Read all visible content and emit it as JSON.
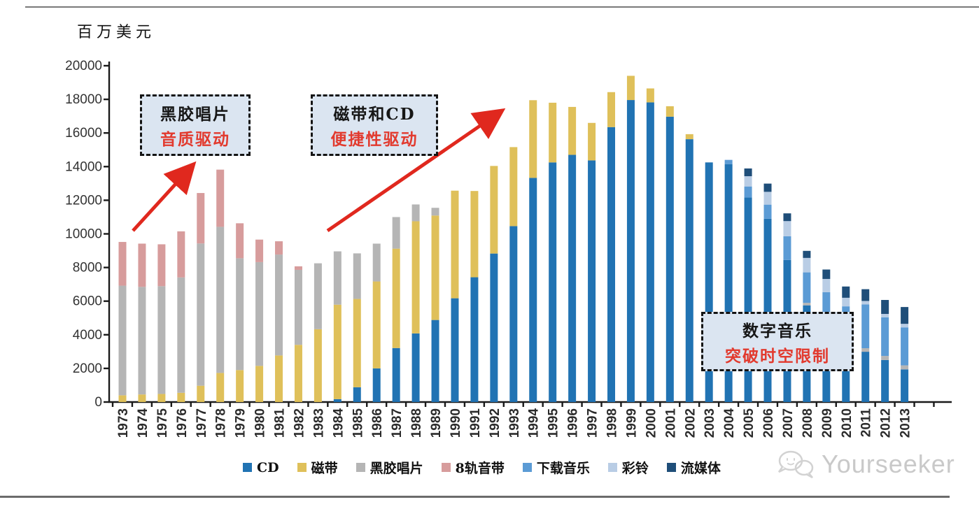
{
  "page": {
    "unit_label": "百万美元",
    "watermark": "Yourseeker"
  },
  "annotations": [
    {
      "line1": "黑胶唱片",
      "line2": "音质驱动"
    },
    {
      "line1": "磁带和CD",
      "line2": "便捷性驱动"
    },
    {
      "line1": "数字音乐",
      "line2": "突破时空限制"
    }
  ],
  "colors": {
    "axis": "#1a1a1a",
    "tick_text": "#333333",
    "arrow_red": "#e0281e",
    "box_bg": "#dbe5f1",
    "box_border": "#141414",
    "annotation_red": "#e23a2e",
    "watermark_gray": "#c9c9c9"
  },
  "chart_data": {
    "type": "bar",
    "stacked": true,
    "title": "",
    "ylabel": "百万美元",
    "xlabel": "",
    "ylim": [
      0,
      20000
    ],
    "ytick_step": 2000,
    "grid": false,
    "legend_position": "bottom",
    "categories": [
      "1973",
      "1974",
      "1975",
      "1976",
      "1977",
      "1978",
      "1979",
      "1980",
      "1981",
      "1982",
      "1983",
      "1984",
      "1985",
      "1986",
      "1987",
      "1988",
      "1989",
      "1990",
      "1991",
      "1992",
      "1993",
      "1994",
      "1995",
      "1996",
      "1997",
      "1998",
      "1999",
      "2000",
      "2001",
      "2002",
      "2003",
      "2004",
      "2005",
      "2006",
      "2007",
      "2008",
      "2009",
      "2010",
      "2011",
      "2012",
      "2013"
    ],
    "series": [
      {
        "name": "CD",
        "color": "#2173b3",
        "values": [
          0,
          0,
          0,
          0,
          0,
          0,
          0,
          0,
          0,
          0,
          0,
          170,
          880,
          2000,
          3210,
          4080,
          4880,
          6170,
          7420,
          8830,
          10460,
          13330,
          14250,
          14700,
          14370,
          16350,
          17960,
          17820,
          16970,
          15630,
          14250,
          14150,
          12160,
          10900,
          8450,
          5750,
          4300,
          3500,
          2990,
          2500,
          1940
        ]
      },
      {
        "name": "磁带",
        "color": "#dfc05a",
        "values": [
          400,
          450,
          480,
          550,
          970,
          1730,
          1900,
          2150,
          2770,
          3400,
          4330,
          5620,
          5250,
          5170,
          5910,
          6670,
          6210,
          6400,
          5130,
          5210,
          4700,
          4620,
          3550,
          2850,
          2230,
          2080,
          1440,
          830,
          620,
          300,
          0,
          0,
          0,
          0,
          0,
          0,
          0,
          0,
          0,
          0,
          0
        ]
      },
      {
        "name": "黑胶唱片",
        "color": "#b5b5b5",
        "values": [
          6520,
          6400,
          6410,
          6860,
          8460,
          8690,
          6650,
          6170,
          6000,
          4460,
          3920,
          3170,
          2710,
          2250,
          1880,
          1000,
          460,
          0,
          0,
          0,
          0,
          0,
          0,
          0,
          0,
          0,
          0,
          0,
          0,
          0,
          0,
          0,
          0,
          0,
          0,
          150,
          0,
          0,
          210,
          240,
          240
        ]
      },
      {
        "name": "8轨音带",
        "color": "#d79c9c",
        "values": [
          2600,
          2570,
          2490,
          2740,
          3000,
          3400,
          2080,
          1340,
          790,
          210,
          0,
          0,
          0,
          0,
          0,
          0,
          0,
          0,
          0,
          0,
          0,
          0,
          0,
          0,
          0,
          0,
          0,
          0,
          0,
          0,
          0,
          0,
          0,
          0,
          0,
          0,
          0,
          0,
          0,
          0,
          0
        ]
      },
      {
        "name": "下载音乐",
        "color": "#5b9bd5",
        "values": [
          0,
          0,
          0,
          0,
          0,
          0,
          0,
          0,
          0,
          0,
          0,
          0,
          0,
          0,
          0,
          0,
          0,
          0,
          0,
          0,
          0,
          0,
          0,
          0,
          0,
          0,
          0,
          0,
          0,
          0,
          0,
          250,
          660,
          840,
          1410,
          1810,
          2230,
          2190,
          2600,
          2300,
          2260
        ]
      },
      {
        "name": "彩铃",
        "color": "#b9cde5",
        "values": [
          0,
          0,
          0,
          0,
          0,
          0,
          0,
          0,
          0,
          0,
          0,
          0,
          0,
          0,
          0,
          0,
          0,
          0,
          0,
          0,
          0,
          0,
          0,
          0,
          0,
          0,
          0,
          0,
          0,
          0,
          0,
          0,
          610,
          760,
          900,
          860,
          790,
          510,
          210,
          200,
          210
        ]
      },
      {
        "name": "流媒体",
        "color": "#1f4e79",
        "values": [
          0,
          0,
          0,
          0,
          0,
          0,
          0,
          0,
          0,
          0,
          0,
          0,
          0,
          0,
          0,
          0,
          0,
          0,
          0,
          0,
          0,
          0,
          0,
          0,
          0,
          0,
          0,
          0,
          0,
          0,
          0,
          0,
          460,
          490,
          460,
          420,
          560,
          670,
          700,
          830,
          1000
        ]
      }
    ]
  }
}
